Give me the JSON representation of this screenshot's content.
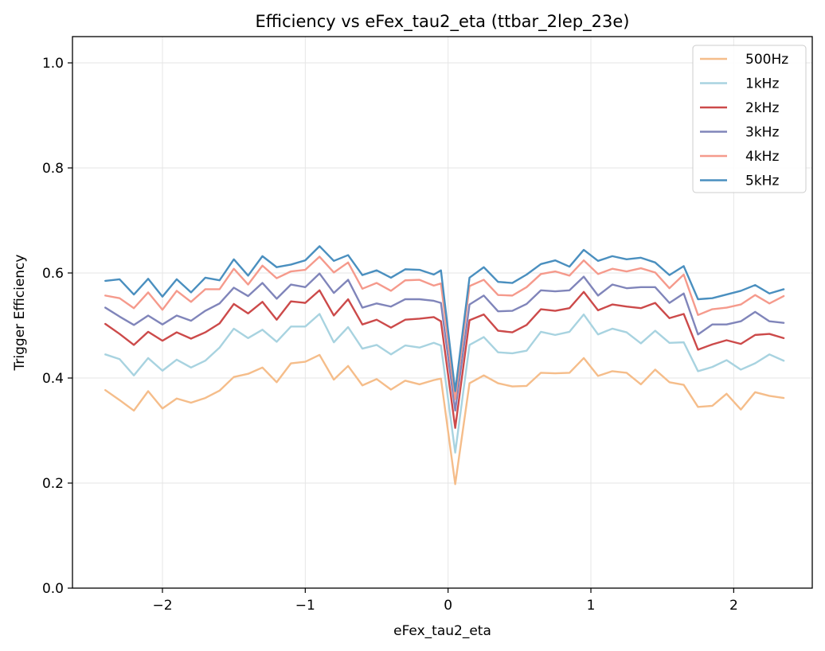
{
  "chart_data": {
    "type": "line",
    "title": "Efficiency vs eFex_tau2_eta (ttbar_2lep_23e)",
    "xlabel": "eFex_tau2_eta",
    "ylabel": "Trigger Efficiency",
    "xlim": [
      -2.63,
      2.55
    ],
    "ylim": [
      0.0,
      1.05
    ],
    "xticks": [
      -2,
      -1,
      0,
      1,
      2
    ],
    "xtick_labels": [
      "−2",
      "−1",
      "0",
      "1",
      "2"
    ],
    "yticks": [
      0.0,
      0.2,
      0.4,
      0.6,
      0.8,
      1.0
    ],
    "ytick_labels": [
      "0.0",
      "0.2",
      "0.4",
      "0.6",
      "0.8",
      "1.0"
    ],
    "grid": true,
    "legend_position": "top-right",
    "x": [
      -2.4,
      -2.3,
      -2.2,
      -2.1,
      -2.0,
      -1.9,
      -1.8,
      -1.7,
      -1.6,
      -1.5,
      -1.4,
      -1.3,
      -1.2,
      -1.1,
      -1.0,
      -0.9,
      -0.8,
      -0.7,
      -0.6,
      -0.5,
      -0.4,
      -0.3,
      -0.2,
      -0.1,
      -0.05,
      0.05,
      0.15,
      0.25,
      0.35,
      0.45,
      0.55,
      0.65,
      0.75,
      0.85,
      0.95,
      1.05,
      1.15,
      1.25,
      1.35,
      1.45,
      1.55,
      1.65,
      1.75,
      1.85,
      1.95,
      2.05,
      2.15,
      2.25,
      2.35
    ],
    "series": [
      {
        "name": "500Hz",
        "color": "#f5bd8a",
        "values": [
          0.377,
          0.358,
          0.338,
          0.375,
          0.342,
          0.361,
          0.353,
          0.362,
          0.376,
          0.402,
          0.408,
          0.42,
          0.392,
          0.428,
          0.431,
          0.444,
          0.397,
          0.423,
          0.386,
          0.398,
          0.378,
          0.395,
          0.388,
          0.396,
          0.399,
          0.198,
          0.39,
          0.405,
          0.39,
          0.384,
          0.385,
          0.41,
          0.409,
          0.41,
          0.438,
          0.404,
          0.413,
          0.41,
          0.388,
          0.416,
          0.392,
          0.387,
          0.345,
          0.347,
          0.37,
          0.34,
          0.373,
          0.366,
          0.362
        ]
      },
      {
        "name": "1kHz",
        "color": "#a8d3e0",
        "values": [
          0.445,
          0.436,
          0.405,
          0.438,
          0.414,
          0.435,
          0.42,
          0.433,
          0.458,
          0.494,
          0.476,
          0.492,
          0.469,
          0.498,
          0.498,
          0.522,
          0.468,
          0.497,
          0.456,
          0.463,
          0.445,
          0.462,
          0.458,
          0.467,
          0.462,
          0.258,
          0.463,
          0.478,
          0.449,
          0.447,
          0.452,
          0.488,
          0.482,
          0.488,
          0.521,
          0.483,
          0.494,
          0.487,
          0.466,
          0.49,
          0.467,
          0.468,
          0.413,
          0.421,
          0.434,
          0.416,
          0.428,
          0.445,
          0.433
        ]
      },
      {
        "name": "2kHz",
        "color": "#cc4a4a",
        "values": [
          0.503,
          0.484,
          0.463,
          0.488,
          0.471,
          0.487,
          0.475,
          0.487,
          0.504,
          0.541,
          0.523,
          0.545,
          0.511,
          0.546,
          0.543,
          0.567,
          0.519,
          0.55,
          0.502,
          0.511,
          0.496,
          0.511,
          0.513,
          0.516,
          0.508,
          0.305,
          0.51,
          0.521,
          0.49,
          0.487,
          0.501,
          0.531,
          0.528,
          0.533,
          0.564,
          0.529,
          0.54,
          0.536,
          0.533,
          0.543,
          0.514,
          0.522,
          0.454,
          0.464,
          0.472,
          0.465,
          0.482,
          0.484,
          0.476
        ]
      },
      {
        "name": "3kHz",
        "color": "#8085ba",
        "values": [
          0.534,
          0.517,
          0.501,
          0.519,
          0.502,
          0.519,
          0.509,
          0.528,
          0.542,
          0.572,
          0.556,
          0.581,
          0.551,
          0.578,
          0.573,
          0.599,
          0.562,
          0.587,
          0.534,
          0.542,
          0.536,
          0.55,
          0.55,
          0.547,
          0.543,
          0.338,
          0.54,
          0.557,
          0.527,
          0.528,
          0.541,
          0.567,
          0.565,
          0.567,
          0.593,
          0.557,
          0.578,
          0.571,
          0.573,
          0.573,
          0.543,
          0.561,
          0.483,
          0.502,
          0.502,
          0.508,
          0.526,
          0.508,
          0.505
        ]
      },
      {
        "name": "4kHz",
        "color": "#f59a8c",
        "values": [
          0.557,
          0.552,
          0.533,
          0.563,
          0.53,
          0.566,
          0.545,
          0.569,
          0.569,
          0.608,
          0.578,
          0.614,
          0.59,
          0.603,
          0.606,
          0.631,
          0.601,
          0.62,
          0.57,
          0.581,
          0.566,
          0.586,
          0.587,
          0.576,
          0.58,
          0.36,
          0.575,
          0.587,
          0.558,
          0.557,
          0.573,
          0.598,
          0.603,
          0.595,
          0.624,
          0.598,
          0.608,
          0.603,
          0.609,
          0.601,
          0.571,
          0.597,
          0.52,
          0.531,
          0.534,
          0.54,
          0.558,
          0.542,
          0.556
        ]
      },
      {
        "name": "5kHz",
        "color": "#4a8fbf",
        "values": [
          0.585,
          0.588,
          0.559,
          0.589,
          0.555,
          0.588,
          0.563,
          0.591,
          0.586,
          0.626,
          0.595,
          0.632,
          0.611,
          0.616,
          0.624,
          0.651,
          0.623,
          0.634,
          0.596,
          0.605,
          0.591,
          0.607,
          0.606,
          0.597,
          0.605,
          0.375,
          0.591,
          0.611,
          0.583,
          0.581,
          0.597,
          0.617,
          0.624,
          0.612,
          0.644,
          0.623,
          0.632,
          0.626,
          0.629,
          0.62,
          0.596,
          0.613,
          0.55,
          0.552,
          0.559,
          0.566,
          0.577,
          0.561,
          0.569
        ]
      }
    ]
  }
}
